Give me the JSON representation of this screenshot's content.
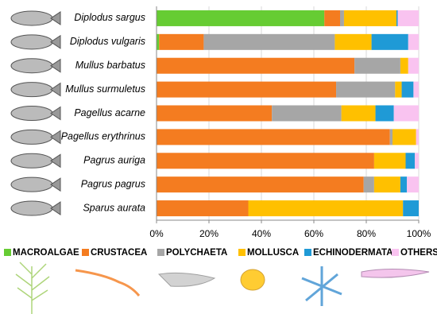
{
  "chart_data": {
    "type": "stacked-bar-horizontal",
    "categories": [
      "Diplodus sargus",
      "Diplodus vulgaris",
      "Mullus barbatus",
      "Mullus surmuletus",
      "Pagellus acarne",
      "Pagellus erythrinus",
      "Pagrus auriga",
      "Pagrus pagrus",
      "Sparus aurata"
    ],
    "series": [
      {
        "name": "MACROALGAE",
        "color": "#66cc33",
        "values": [
          64,
          1,
          0,
          0,
          0,
          0,
          0,
          0,
          0
        ]
      },
      {
        "name": "CRUSTACEA",
        "color": "#f47c20",
        "values": [
          6,
          17,
          75.5,
          68.5,
          44,
          89,
          83,
          79,
          35
        ]
      },
      {
        "name": "POLYCHAETA",
        "color": "#a6a6a6",
        "values": [
          1.5,
          50,
          17.5,
          22.5,
          26.5,
          1,
          0,
          4,
          0
        ]
      },
      {
        "name": "MOLLUSCA",
        "color": "#ffc000",
        "values": [
          20,
          14,
          3,
          2.5,
          13,
          9,
          12,
          10,
          59
        ]
      },
      {
        "name": "ECHINODERMATA",
        "color": "#1f9ad6",
        "values": [
          0.5,
          14,
          0,
          4.5,
          7,
          0,
          3.5,
          2.5,
          6
        ]
      },
      {
        "name": "OTHERS",
        "color": "#f9c3f0",
        "values": [
          8,
          4,
          4,
          2,
          9.5,
          1,
          1.5,
          4.5,
          0
        ]
      }
    ],
    "xlim": [
      0,
      100
    ],
    "xticks": [
      {
        "value": 0,
        "label": "0%"
      },
      {
        "value": 20,
        "label": "20%"
      },
      {
        "value": 40,
        "label": "40%"
      },
      {
        "value": 60,
        "label": "60%"
      },
      {
        "value": 80,
        "label": "80%"
      },
      {
        "value": 100,
        "label": "100%"
      }
    ],
    "grid": true
  }
}
